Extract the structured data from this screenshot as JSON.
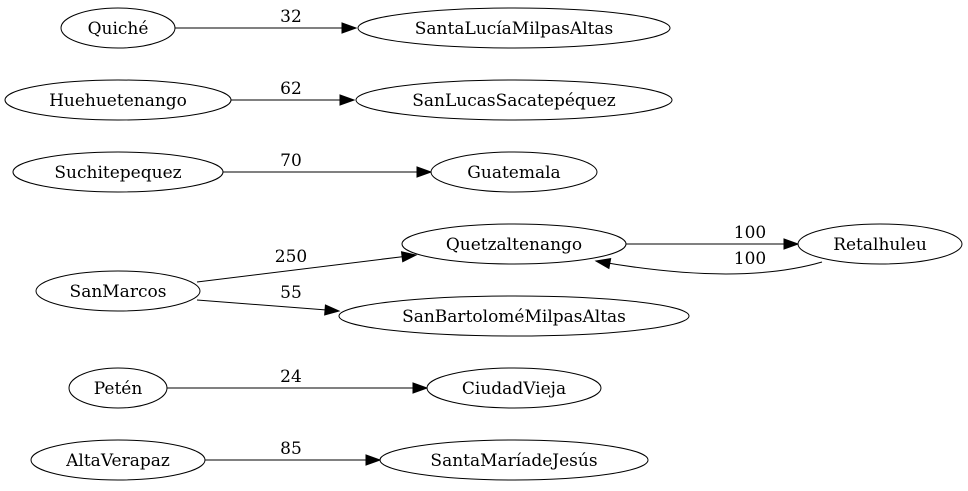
{
  "graph": {
    "nodes": [
      {
        "id": "quiche",
        "label": "Quiché"
      },
      {
        "id": "santalucia",
        "label": "SantaLucíaMilpasAltas"
      },
      {
        "id": "huehuetenango",
        "label": "Huehuetenango"
      },
      {
        "id": "sanlucas",
        "label": "SanLucasSacatepéquez"
      },
      {
        "id": "suchitepequez",
        "label": "Suchitepequez"
      },
      {
        "id": "guatemala",
        "label": "Guatemala"
      },
      {
        "id": "quetzaltenango",
        "label": "Quetzaltenango"
      },
      {
        "id": "retalhuleu",
        "label": "Retalhuleu"
      },
      {
        "id": "sanmarcos",
        "label": "SanMarcos"
      },
      {
        "id": "sanbartolome",
        "label": "SanBartoloméMilpasAltas"
      },
      {
        "id": "peten",
        "label": "Petén"
      },
      {
        "id": "ciudadvieja",
        "label": "CiudadVieja"
      },
      {
        "id": "altaverapaz",
        "label": "AltaVerapaz"
      },
      {
        "id": "santamaria",
        "label": "SantaMaríadeJesús"
      }
    ],
    "edges": [
      {
        "from": "quiche",
        "to": "santalucia",
        "label": "32"
      },
      {
        "from": "huehuetenango",
        "to": "sanlucas",
        "label": "62"
      },
      {
        "from": "suchitepequez",
        "to": "guatemala",
        "label": "70"
      },
      {
        "from": "sanmarcos",
        "to": "quetzaltenango",
        "label": "250"
      },
      {
        "from": "sanmarcos",
        "to": "sanbartolome",
        "label": "55"
      },
      {
        "from": "quetzaltenango",
        "to": "retalhuleu",
        "label": "100"
      },
      {
        "from": "retalhuleu",
        "to": "quetzaltenango",
        "label": "100"
      },
      {
        "from": "peten",
        "to": "ciudadvieja",
        "label": "24"
      },
      {
        "from": "altaverapaz",
        "to": "santamaria",
        "label": "85"
      }
    ]
  }
}
